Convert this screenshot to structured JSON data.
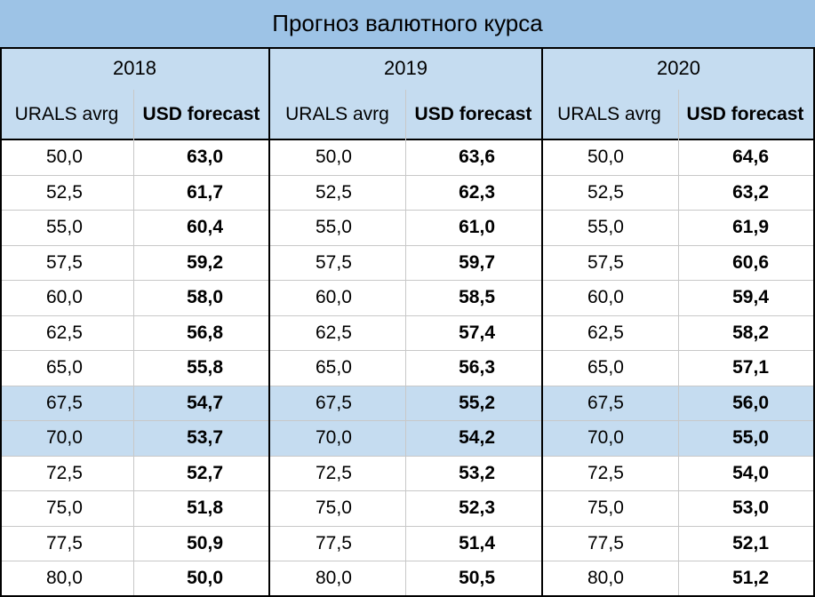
{
  "title": "Прогноз валютного курса",
  "years": [
    "2018",
    "2019",
    "2020"
  ],
  "subheaders": {
    "urals": "URALS avrg",
    "usd": "USD forecast"
  },
  "highlight_color": "#c5dcf0",
  "header_color": "#9dc3e6",
  "rows": [
    {
      "urals": "50,0",
      "usd2018": "63,0",
      "usd2019": "63,6",
      "usd2020": "64,6",
      "highlight": false
    },
    {
      "urals": "52,5",
      "usd2018": "61,7",
      "usd2019": "62,3",
      "usd2020": "63,2",
      "highlight": false
    },
    {
      "urals": "55,0",
      "usd2018": "60,4",
      "usd2019": "61,0",
      "usd2020": "61,9",
      "highlight": false
    },
    {
      "urals": "57,5",
      "usd2018": "59,2",
      "usd2019": "59,7",
      "usd2020": "60,6",
      "highlight": false
    },
    {
      "urals": "60,0",
      "usd2018": "58,0",
      "usd2019": "58,5",
      "usd2020": "59,4",
      "highlight": false
    },
    {
      "urals": "62,5",
      "usd2018": "56,8",
      "usd2019": "57,4",
      "usd2020": "58,2",
      "highlight": false
    },
    {
      "urals": "65,0",
      "usd2018": "55,8",
      "usd2019": "56,3",
      "usd2020": "57,1",
      "highlight": false
    },
    {
      "urals": "67,5",
      "usd2018": "54,7",
      "usd2019": "55,2",
      "usd2020": "56,0",
      "highlight": true
    },
    {
      "urals": "70,0",
      "usd2018": "53,7",
      "usd2019": "54,2",
      "usd2020": "55,0",
      "highlight": true
    },
    {
      "urals": "72,5",
      "usd2018": "52,7",
      "usd2019": "53,2",
      "usd2020": "54,0",
      "highlight": false
    },
    {
      "urals": "75,0",
      "usd2018": "51,8",
      "usd2019": "52,3",
      "usd2020": "53,0",
      "highlight": false
    },
    {
      "urals": "77,5",
      "usd2018": "50,9",
      "usd2019": "51,4",
      "usd2020": "52,1",
      "highlight": false
    },
    {
      "urals": "80,0",
      "usd2018": "50,0",
      "usd2019": "50,5",
      "usd2020": "51,2",
      "highlight": false
    }
  ]
}
